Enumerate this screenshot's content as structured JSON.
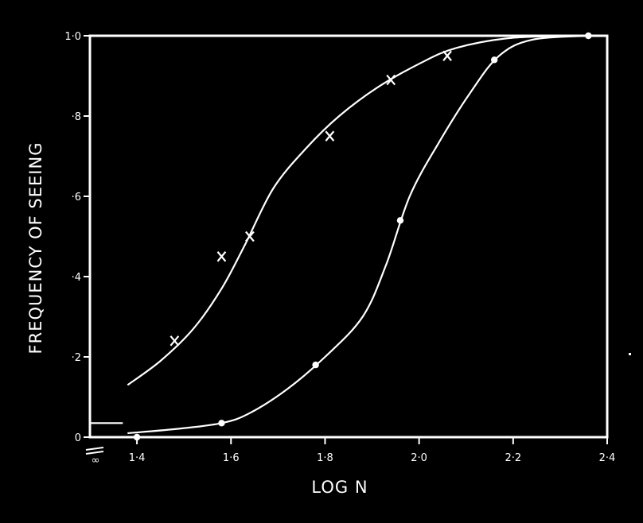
{
  "chart_data": {
    "type": "line",
    "title": "",
    "xlabel": "LOG N",
    "ylabel": "FREQUENCY OF SEEING",
    "xlim": [
      1.3,
      2.4
    ],
    "ylim": [
      0,
      1.0
    ],
    "x_tick_labels": [
      {
        "value": 1.4,
        "label": "1·4"
      },
      {
        "value": 1.6,
        "label": "1·6"
      },
      {
        "value": 1.8,
        "label": "1·8"
      },
      {
        "value": 2.0,
        "label": "2·0"
      },
      {
        "value": 2.2,
        "label": "2·2"
      },
      {
        "value": 2.4,
        "label": "2·4"
      }
    ],
    "x_break_label": "∞",
    "y_tick_labels": [
      {
        "value": 0,
        "label": "0"
      },
      {
        "value": 0.2,
        "label": "·2"
      },
      {
        "value": 0.4,
        "label": "·4"
      },
      {
        "value": 0.6,
        "label": "·6"
      },
      {
        "value": 0.8,
        "label": "·8"
      },
      {
        "value": 1.0,
        "label": "1·0"
      }
    ],
    "grid": false,
    "series": [
      {
        "marker": "x",
        "points": [
          {
            "x": 1.48,
            "y": 0.24
          },
          {
            "x": 1.58,
            "y": 0.45
          },
          {
            "x": 1.64,
            "y": 0.5
          },
          {
            "x": 1.81,
            "y": 0.75
          },
          {
            "x": 1.94,
            "y": 0.89
          },
          {
            "x": 2.06,
            "y": 0.95
          }
        ],
        "curve": [
          {
            "x": 1.38,
            "y": 0.13
          },
          {
            "x": 1.45,
            "y": 0.19
          },
          {
            "x": 1.52,
            "y": 0.27
          },
          {
            "x": 1.58,
            "y": 0.37
          },
          {
            "x": 1.63,
            "y": 0.48
          },
          {
            "x": 1.69,
            "y": 0.62
          },
          {
            "x": 1.76,
            "y": 0.72
          },
          {
            "x": 1.83,
            "y": 0.8
          },
          {
            "x": 1.91,
            "y": 0.87
          },
          {
            "x": 2.0,
            "y": 0.93
          },
          {
            "x": 2.08,
            "y": 0.97
          },
          {
            "x": 2.2,
            "y": 0.995
          },
          {
            "x": 2.36,
            "y": 1.0
          }
        ]
      },
      {
        "marker": "dot",
        "points": [
          {
            "x": 1.4,
            "y": 0.0
          },
          {
            "x": 1.58,
            "y": 0.035
          },
          {
            "x": 1.78,
            "y": 0.18
          },
          {
            "x": 1.96,
            "y": 0.54
          },
          {
            "x": 2.16,
            "y": 0.94
          },
          {
            "x": 2.36,
            "y": 1.0
          }
        ],
        "curve": [
          {
            "x": 1.38,
            "y": 0.01
          },
          {
            "x": 1.48,
            "y": 0.02
          },
          {
            "x": 1.58,
            "y": 0.035
          },
          {
            "x": 1.64,
            "y": 0.06
          },
          {
            "x": 1.72,
            "y": 0.12
          },
          {
            "x": 1.8,
            "y": 0.2
          },
          {
            "x": 1.88,
            "y": 0.3
          },
          {
            "x": 1.93,
            "y": 0.43
          },
          {
            "x": 1.98,
            "y": 0.6
          },
          {
            "x": 2.04,
            "y": 0.73
          },
          {
            "x": 2.11,
            "y": 0.86
          },
          {
            "x": 2.17,
            "y": 0.95
          },
          {
            "x": 2.24,
            "y": 0.99
          },
          {
            "x": 2.36,
            "y": 1.0
          }
        ]
      }
    ],
    "baseline_marks": [
      {
        "x_from": 1.3,
        "x_to": 1.37,
        "y": 0.035
      }
    ]
  }
}
